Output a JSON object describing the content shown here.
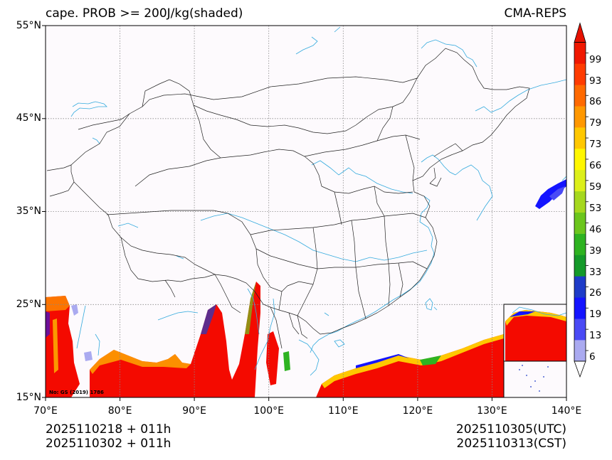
{
  "title": {
    "left": "cape. PROB >= 200J/kg(shaded)",
    "right": "CMA-REPS"
  },
  "axes": {
    "lon_ticks": [
      "70°E",
      "80°E",
      "90°E",
      "100°E",
      "110°E",
      "120°E",
      "130°E",
      "140°E"
    ],
    "lat_ticks": [
      "55°N",
      "45°N",
      "35°N",
      "25°N",
      "15°N"
    ]
  },
  "colorbar": {
    "labels": [
      "99",
      "93",
      "86",
      "79",
      "73",
      "66",
      "59",
      "53",
      "46",
      "39",
      "33",
      "26",
      "19",
      "13",
      "6"
    ],
    "colors": {
      "c0": "#aaaaf0",
      "c1": "#4a4af5",
      "c2": "#1414ff",
      "c3": "#1e3cc8",
      "c4": "#159a2a",
      "c5": "#2eb321",
      "c6": "#6cc61d",
      "c7": "#a6d81e",
      "c8": "#dcef1a",
      "c9": "#fff700",
      "c10": "#ffc800",
      "c11": "#ff9800",
      "c12": "#ff6a00",
      "c13": "#ff3c00",
      "c14": "#f01800",
      "top": "#e61100"
    }
  },
  "map_colors": {
    "water": "#33aadd",
    "borders": "#222222",
    "shade_main": "#f40a00"
  },
  "stamp": "No: GS (2019) 1786",
  "footer": {
    "left_line1": "2025110218  +  011h",
    "left_line2": "2025110302  +  011h",
    "right_line1": "2025110305(UTC)",
    "right_line2": "2025110313(CST)"
  }
}
